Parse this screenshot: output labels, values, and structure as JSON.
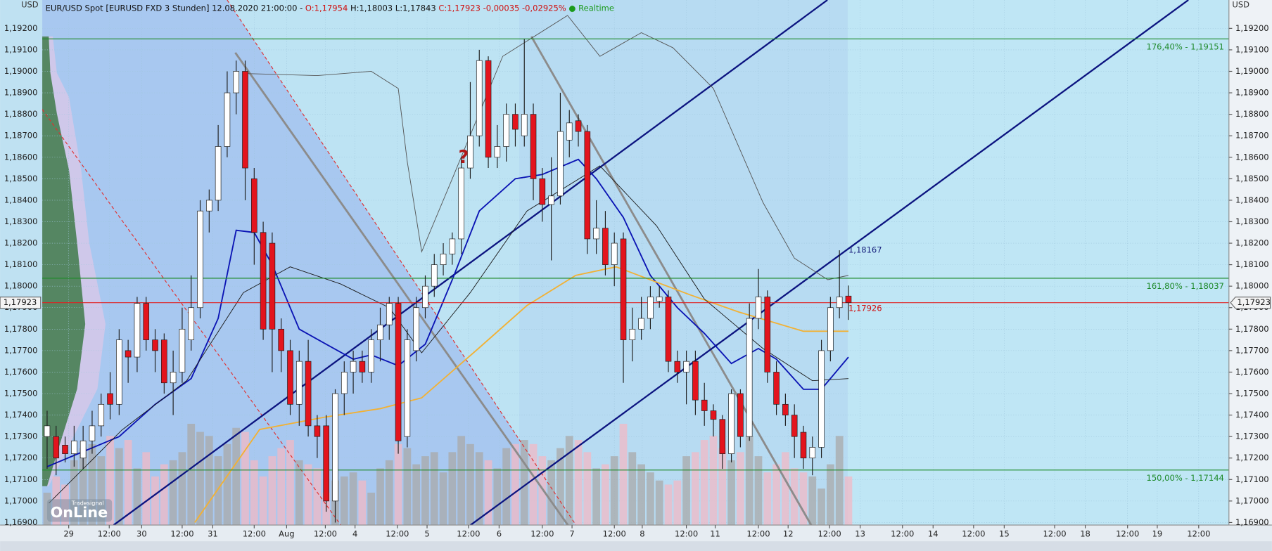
{
  "chart_data": {
    "type": "candlestick",
    "header": {
      "title": "EUR/USD Spot [EURUSD FXD 3 Stunden] 12.08.2020 21:00:00 -",
      "open": "O:1,17954",
      "high_low": "H:1,18003 L:1,17843",
      "close": "C:1,17923 -0,00035 -0,02925%",
      "realtime": "● Realtime"
    },
    "currency": "USD",
    "xlim": [
      -0.54,
      131.26
    ],
    "ylim": [
      1.16888,
      1.19332
    ],
    "grid": true,
    "up_color": "#ffffff",
    "down_color": "#e3141d",
    "outline_color": "#1e1e1e",
    "volume_up_color": "#a9a9a9",
    "volume_down_color": "#f1b9c6",
    "xticks": [
      {
        "value": 2.4,
        "label": "29"
      },
      {
        "value": 6.9,
        "label": "12:00"
      },
      {
        "value": 10.5,
        "label": "30"
      },
      {
        "value": 15.0,
        "label": "12:00"
      },
      {
        "value": 18.4,
        "label": "31"
      },
      {
        "value": 23.0,
        "label": "12:00"
      },
      {
        "value": 26.6,
        "label": "Aug"
      },
      {
        "value": 30.9,
        "label": "12:00"
      },
      {
        "value": 34.2,
        "label": "4"
      },
      {
        "value": 38.9,
        "label": "12:00"
      },
      {
        "value": 42.2,
        "label": "5"
      },
      {
        "value": 46.8,
        "label": "12:00"
      },
      {
        "value": 50.2,
        "label": "6"
      },
      {
        "value": 55.0,
        "label": "12:00"
      },
      {
        "value": 58.3,
        "label": "7"
      },
      {
        "value": 63.0,
        "label": "12:00"
      },
      {
        "value": 66.1,
        "label": "8"
      },
      {
        "value": 71.0,
        "label": "12:00"
      },
      {
        "value": 74.2,
        "label": "11"
      },
      {
        "value": 79.0,
        "label": "12:00"
      },
      {
        "value": 82.3,
        "label": "12"
      },
      {
        "value": 86.9,
        "label": "12:00"
      },
      {
        "value": 90.3,
        "label": "13"
      },
      {
        "value": 95.0,
        "label": "12:00"
      },
      {
        "value": 98.4,
        "label": "14"
      },
      {
        "value": 102.9,
        "label": "12:00"
      },
      {
        "value": 106.3,
        "label": "15"
      },
      {
        "value": 111.9,
        "label": "12:00"
      },
      {
        "value": 115.3,
        "label": "18"
      },
      {
        "value": 120.0,
        "label": "12:00"
      },
      {
        "value": 123.3,
        "label": "19"
      },
      {
        "value": 127.9,
        "label": "12:00"
      }
    ],
    "yticks": [
      {
        "value": 1.169,
        "label": "1,16900"
      },
      {
        "value": 1.17,
        "label": "1,17000"
      },
      {
        "value": 1.171,
        "label": "1,17100"
      },
      {
        "value": 1.172,
        "label": "1,17200"
      },
      {
        "value": 1.173,
        "label": "1,17300"
      },
      {
        "value": 1.174,
        "label": "1,17400"
      },
      {
        "value": 1.175,
        "label": "1,17500"
      },
      {
        "value": 1.176,
        "label": "1,17600"
      },
      {
        "value": 1.177,
        "label": "1,17700"
      },
      {
        "value": 1.178,
        "label": "1,17800"
      },
      {
        "value": 1.179,
        "label": "1,17900"
      },
      {
        "value": 1.18,
        "label": "1,18000"
      },
      {
        "value": 1.181,
        "label": "1,18100"
      },
      {
        "value": 1.182,
        "label": "1,18200"
      },
      {
        "value": 1.183,
        "label": "1,18300"
      },
      {
        "value": 1.184,
        "label": "1,18400"
      },
      {
        "value": 1.185,
        "label": "1,18500"
      },
      {
        "value": 1.186,
        "label": "1,18600"
      },
      {
        "value": 1.187,
        "label": "1,18700"
      },
      {
        "value": 1.188,
        "label": "1,18800"
      },
      {
        "value": 1.189,
        "label": "1,18900"
      },
      {
        "value": 1.19,
        "label": "1,19000"
      },
      {
        "value": 1.191,
        "label": "1,19100"
      },
      {
        "value": 1.192,
        "label": "1,19200"
      }
    ],
    "open": [
      1.173,
      1.173,
      1.1726,
      1.1722,
      1.172,
      1.1728,
      1.1735,
      1.175,
      1.1745,
      1.177,
      1.1767,
      1.1792,
      1.1775,
      1.1775,
      1.1755,
      1.176,
      1.1775,
      1.179,
      1.1835,
      1.184,
      1.1865,
      1.189,
      1.19,
      1.185,
      1.1825,
      1.182,
      1.178,
      1.177,
      1.1745,
      1.1765,
      1.1735,
      1.1735,
      1.17,
      1.175,
      1.176,
      1.1765,
      1.176,
      1.1775,
      1.1782,
      1.1792,
      1.173,
      1.177,
      1.179,
      1.18,
      1.181,
      1.1815,
      1.1822,
      1.1855,
      1.187,
      1.1905,
      1.186,
      1.1865,
      1.188,
      1.187,
      1.188,
      1.185,
      1.1838,
      1.1842,
      1.1868,
      1.1877,
      1.1872,
      1.1822,
      1.1827,
      1.181,
      1.1822,
      1.1775,
      1.178,
      1.1785,
      1.1793,
      1.1795,
      1.1765,
      1.176,
      1.1765,
      1.1747,
      1.1742,
      1.1738,
      1.1722,
      1.175,
      1.173,
      1.1785,
      1.1795,
      1.176,
      1.1745,
      1.174,
      1.1732,
      1.172,
      1.1725,
      1.177,
      1.179,
      1.17954
    ],
    "high": [
      1.1742,
      1.1735,
      1.173,
      1.1735,
      1.1735,
      1.1742,
      1.175,
      1.176,
      1.178,
      1.1775,
      1.1795,
      1.1795,
      1.178,
      1.1778,
      1.177,
      1.179,
      1.1805,
      1.184,
      1.1845,
      1.1875,
      1.19,
      1.1905,
      1.1905,
      1.1855,
      1.183,
      1.1825,
      1.1785,
      1.1775,
      1.177,
      1.1775,
      1.174,
      1.174,
      1.1752,
      1.1765,
      1.177,
      1.177,
      1.178,
      1.179,
      1.1795,
      1.1795,
      1.178,
      1.1795,
      1.1805,
      1.1815,
      1.182,
      1.1825,
      1.186,
      1.1895,
      1.191,
      1.1907,
      1.1875,
      1.1885,
      1.1885,
      1.1915,
      1.1885,
      1.1855,
      1.186,
      1.189,
      1.1882,
      1.188,
      1.1875,
      1.184,
      1.1835,
      1.1825,
      1.1825,
      1.179,
      1.1795,
      1.18,
      1.18,
      1.1798,
      1.177,
      1.177,
      1.177,
      1.1755,
      1.1745,
      1.174,
      1.1752,
      1.1752,
      1.1792,
      1.1808,
      1.1798,
      1.1765,
      1.175,
      1.1745,
      1.1735,
      1.173,
      1.1775,
      1.1795,
      1.18167,
      1.18003
    ],
    "low": [
      1.1715,
      1.1712,
      1.1718,
      1.1716,
      1.1715,
      1.1722,
      1.173,
      1.1738,
      1.174,
      1.1755,
      1.176,
      1.177,
      1.176,
      1.175,
      1.174,
      1.1755,
      1.177,
      1.1785,
      1.1825,
      1.1835,
      1.186,
      1.188,
      1.184,
      1.181,
      1.1775,
      1.176,
      1.176,
      1.174,
      1.1735,
      1.173,
      1.172,
      1.1695,
      1.169,
      1.174,
      1.175,
      1.1755,
      1.1755,
      1.1765,
      1.1775,
      1.1722,
      1.1725,
      1.1765,
      1.1785,
      1.1795,
      1.1805,
      1.181,
      1.1815,
      1.185,
      1.1865,
      1.1855,
      1.1855,
      1.1858,
      1.1865,
      1.1865,
      1.184,
      1.183,
      1.1812,
      1.1838,
      1.186,
      1.1865,
      1.1815,
      1.1815,
      1.1805,
      1.18,
      1.1755,
      1.1765,
      1.1775,
      1.178,
      1.179,
      1.176,
      1.1755,
      1.1745,
      1.174,
      1.1735,
      1.173,
      1.1715,
      1.1718,
      1.1725,
      1.1728,
      1.178,
      1.1755,
      1.174,
      1.1735,
      1.172,
      1.1715,
      1.1712,
      1.172,
      1.1765,
      1.1785,
      1.17843
    ],
    "close": [
      1.1735,
      1.172,
      1.1722,
      1.1728,
      1.1728,
      1.1735,
      1.1745,
      1.1745,
      1.1775,
      1.1767,
      1.1792,
      1.1775,
      1.177,
      1.1755,
      1.176,
      1.178,
      1.179,
      1.1835,
      1.184,
      1.1865,
      1.189,
      1.19,
      1.1855,
      1.1825,
      1.178,
      1.178,
      1.177,
      1.1745,
      1.1765,
      1.1735,
      1.173,
      1.17,
      1.175,
      1.176,
      1.1765,
      1.176,
      1.1775,
      1.1782,
      1.1792,
      1.1728,
      1.1775,
      1.179,
      1.18,
      1.181,
      1.1815,
      1.1822,
      1.1855,
      1.187,
      1.1905,
      1.186,
      1.1865,
      1.188,
      1.1873,
      1.188,
      1.185,
      1.1838,
      1.1842,
      1.1872,
      1.1876,
      1.1872,
      1.1822,
      1.1827,
      1.181,
      1.182,
      1.1775,
      1.178,
      1.1785,
      1.1795,
      1.1795,
      1.1765,
      1.176,
      1.1765,
      1.1747,
      1.1742,
      1.1738,
      1.1722,
      1.175,
      1.173,
      1.1785,
      1.1795,
      1.176,
      1.1745,
      1.174,
      1.173,
      1.172,
      1.1725,
      1.177,
      1.179,
      1.1795,
      1.17923
    ],
    "volume": [
      40,
      60,
      50,
      80,
      95,
      100,
      85,
      110,
      95,
      105,
      70,
      90,
      60,
      75,
      80,
      90,
      125,
      115,
      110,
      85,
      100,
      120,
      115,
      80,
      60,
      85,
      95,
      105,
      80,
      75,
      70,
      40,
      55,
      60,
      65,
      55,
      40,
      70,
      80,
      100,
      95,
      75,
      85,
      90,
      65,
      90,
      110,
      100,
      90,
      80,
      70,
      95,
      100,
      105,
      100,
      85,
      80,
      95,
      110,
      105,
      90,
      70,
      75,
      85,
      125,
      90,
      75,
      65,
      55,
      50,
      55,
      85,
      90,
      105,
      110,
      95,
      80,
      90,
      110,
      85,
      65,
      75,
      90,
      70,
      65,
      60,
      45,
      75,
      110,
      60
    ],
    "indicators": [
      {
        "color": "#0b14b4",
        "x": [
          0,
          8,
          12,
          16,
          19,
          21,
          23,
          25,
          28,
          31,
          34,
          36,
          39,
          42,
          45,
          48,
          52,
          55,
          59,
          61,
          64,
          67,
          70,
          73,
          76,
          79,
          81,
          84,
          86,
          89
        ],
        "values": [
          1.1716,
          1.173,
          1.1745,
          1.1757,
          1.1785,
          1.1826,
          1.1825,
          1.181,
          1.178,
          1.1773,
          1.1766,
          1.1768,
          1.1763,
          1.1773,
          1.1803,
          1.1835,
          1.185,
          1.1852,
          1.1859,
          1.185,
          1.1832,
          1.1805,
          1.179,
          1.1778,
          1.1764,
          1.1771,
          1.1766,
          1.1752,
          1.1752,
          1.1767
        ]
      },
      {
        "color": "#f2b134",
        "x": [
          16.4,
          23.6,
          30.8,
          37,
          41.6,
          47.9,
          53.3,
          58.7,
          63.2,
          71.4,
          76.8,
          84,
          89
        ],
        "values": [
          1.169,
          1.17333,
          1.1739,
          1.1743,
          1.1748,
          1.1771,
          1.1791,
          1.1805,
          1.1809,
          1.1796,
          1.1788,
          1.1779,
          1.1779
        ]
      },
      {
        "color": "#1a1a1a",
        "x": [
          0.2,
          8.3,
          15.5,
          21.8,
          27,
          32.6,
          38,
          41.6,
          47,
          53.3,
          61.4,
          67.7,
          73,
          79.5,
          85,
          89
        ],
        "values": [
          1.1699,
          1.1733,
          1.1756,
          1.1797,
          1.1809,
          1.1801,
          1.179,
          1.1769,
          1.1797,
          1.1835,
          1.1856,
          1.1828,
          1.1794,
          1.1771,
          1.1756,
          1.1757
        ]
      },
      {
        "color": "#555555",
        "x": [
          21.8,
          30,
          36,
          39,
          40,
          41.6,
          45,
          50.6,
          57.8,
          61.4,
          66,
          69.5,
          74,
          79.5,
          83,
          86.7,
          89
        ],
        "values": [
          1.1899,
          1.1898,
          1.19,
          1.1892,
          1.1858,
          1.1816,
          1.185,
          1.1907,
          1.1926,
          1.1907,
          1.1918,
          1.1911,
          1.1892,
          1.1839,
          1.1813,
          1.1803,
          1.1805
        ]
      }
    ],
    "levels": [
      {
        "value": 1.19151,
        "label": "176,40% - 1,19151",
        "color": "#1e8a2a"
      },
      {
        "value": 1.18037,
        "label": "161,80% - 1,18037",
        "color": "#1e8a2a"
      },
      {
        "value": 1.17144,
        "label": "150,00% - 1,17144",
        "color": "#1e8a2a"
      }
    ],
    "last_price": {
      "value": 1.17923,
      "label": "1,17923",
      "color": "#e02020"
    },
    "annotations": [
      {
        "value": 1.18167,
        "label": "1,18167",
        "color": "#1a237e"
      },
      {
        "value": 1.17926,
        "label": "1,17926",
        "color": "#d01010"
      }
    ],
    "question_mark": "?",
    "logo": {
      "top": "Tradesignal",
      "main": "OnLine"
    }
  }
}
